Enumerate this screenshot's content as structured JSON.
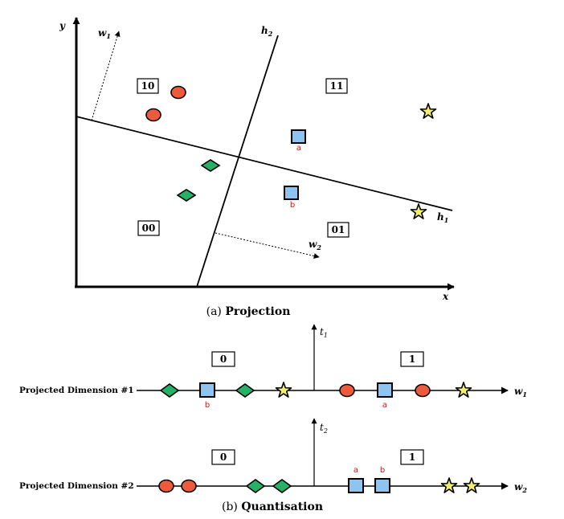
{
  "colors": {
    "circle": "#ee5a3c",
    "square": "#8ec4f0",
    "diamond": "#25b266",
    "star": "#f4ee6e",
    "label_red": "#dd1111"
  },
  "icons": [
    "circle-marker",
    "square-marker",
    "diamond-marker",
    "star-marker"
  ],
  "projection": {
    "caption_prefix": "(a)",
    "caption_title": "Projection",
    "axis_x": "x",
    "axis_y": "y",
    "hyperplane_1": "h",
    "hyperplane_1_sub": "1",
    "hyperplane_2": "h",
    "hyperplane_2_sub": "2",
    "normal_1": "w",
    "normal_1_sub": "1",
    "normal_2": "w",
    "normal_2_sub": "2",
    "region_codes": [
      "10",
      "11",
      "00",
      "01"
    ],
    "point_labels": [
      "a",
      "b"
    ]
  },
  "quantisation": {
    "caption_prefix": "(b)",
    "caption_title": "Quantisation",
    "row1_label": "Projected Dimension #1",
    "row2_label": "Projected Dimension #2",
    "threshold_1": "t",
    "threshold_1_sub": "1",
    "threshold_2": "t",
    "threshold_2_sub": "2",
    "axis_1": "w",
    "axis_1_sub": "1",
    "axis_2": "w",
    "axis_2_sub": "2",
    "bit_left": "0",
    "bit_right": "1",
    "row1_marker_labels": [
      "b",
      "a"
    ],
    "row2_marker_labels": [
      "a",
      "b"
    ]
  }
}
